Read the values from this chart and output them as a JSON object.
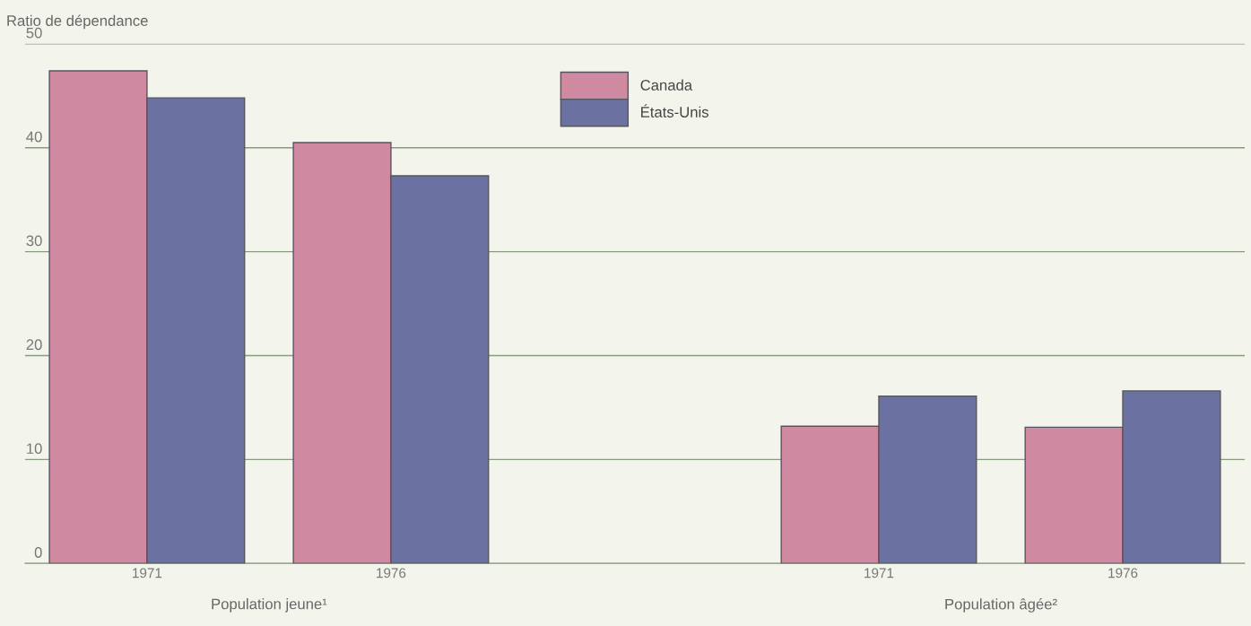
{
  "chart_data": {
    "type": "bar",
    "ylabel": "Ratio de dépendance",
    "categories": [
      "1971",
      "1976",
      null,
      "1971",
      "1976"
    ],
    "series": [
      {
        "name": "Canada",
        "color": "#cf8aa2",
        "values": [
          47.4,
          40.5,
          null,
          13.2,
          13.1
        ]
      },
      {
        "name": "États-Unis",
        "color": "#6b71a0",
        "values": [
          44.8,
          37.3,
          null,
          16.1,
          16.6
        ]
      }
    ],
    "annotations": [
      "Population jeune¹",
      "Population âgée²"
    ],
    "ylim": [
      0,
      50
    ],
    "yticks": [
      0,
      10,
      20,
      30,
      40,
      50
    ],
    "grid": "y",
    "legend": "top"
  }
}
